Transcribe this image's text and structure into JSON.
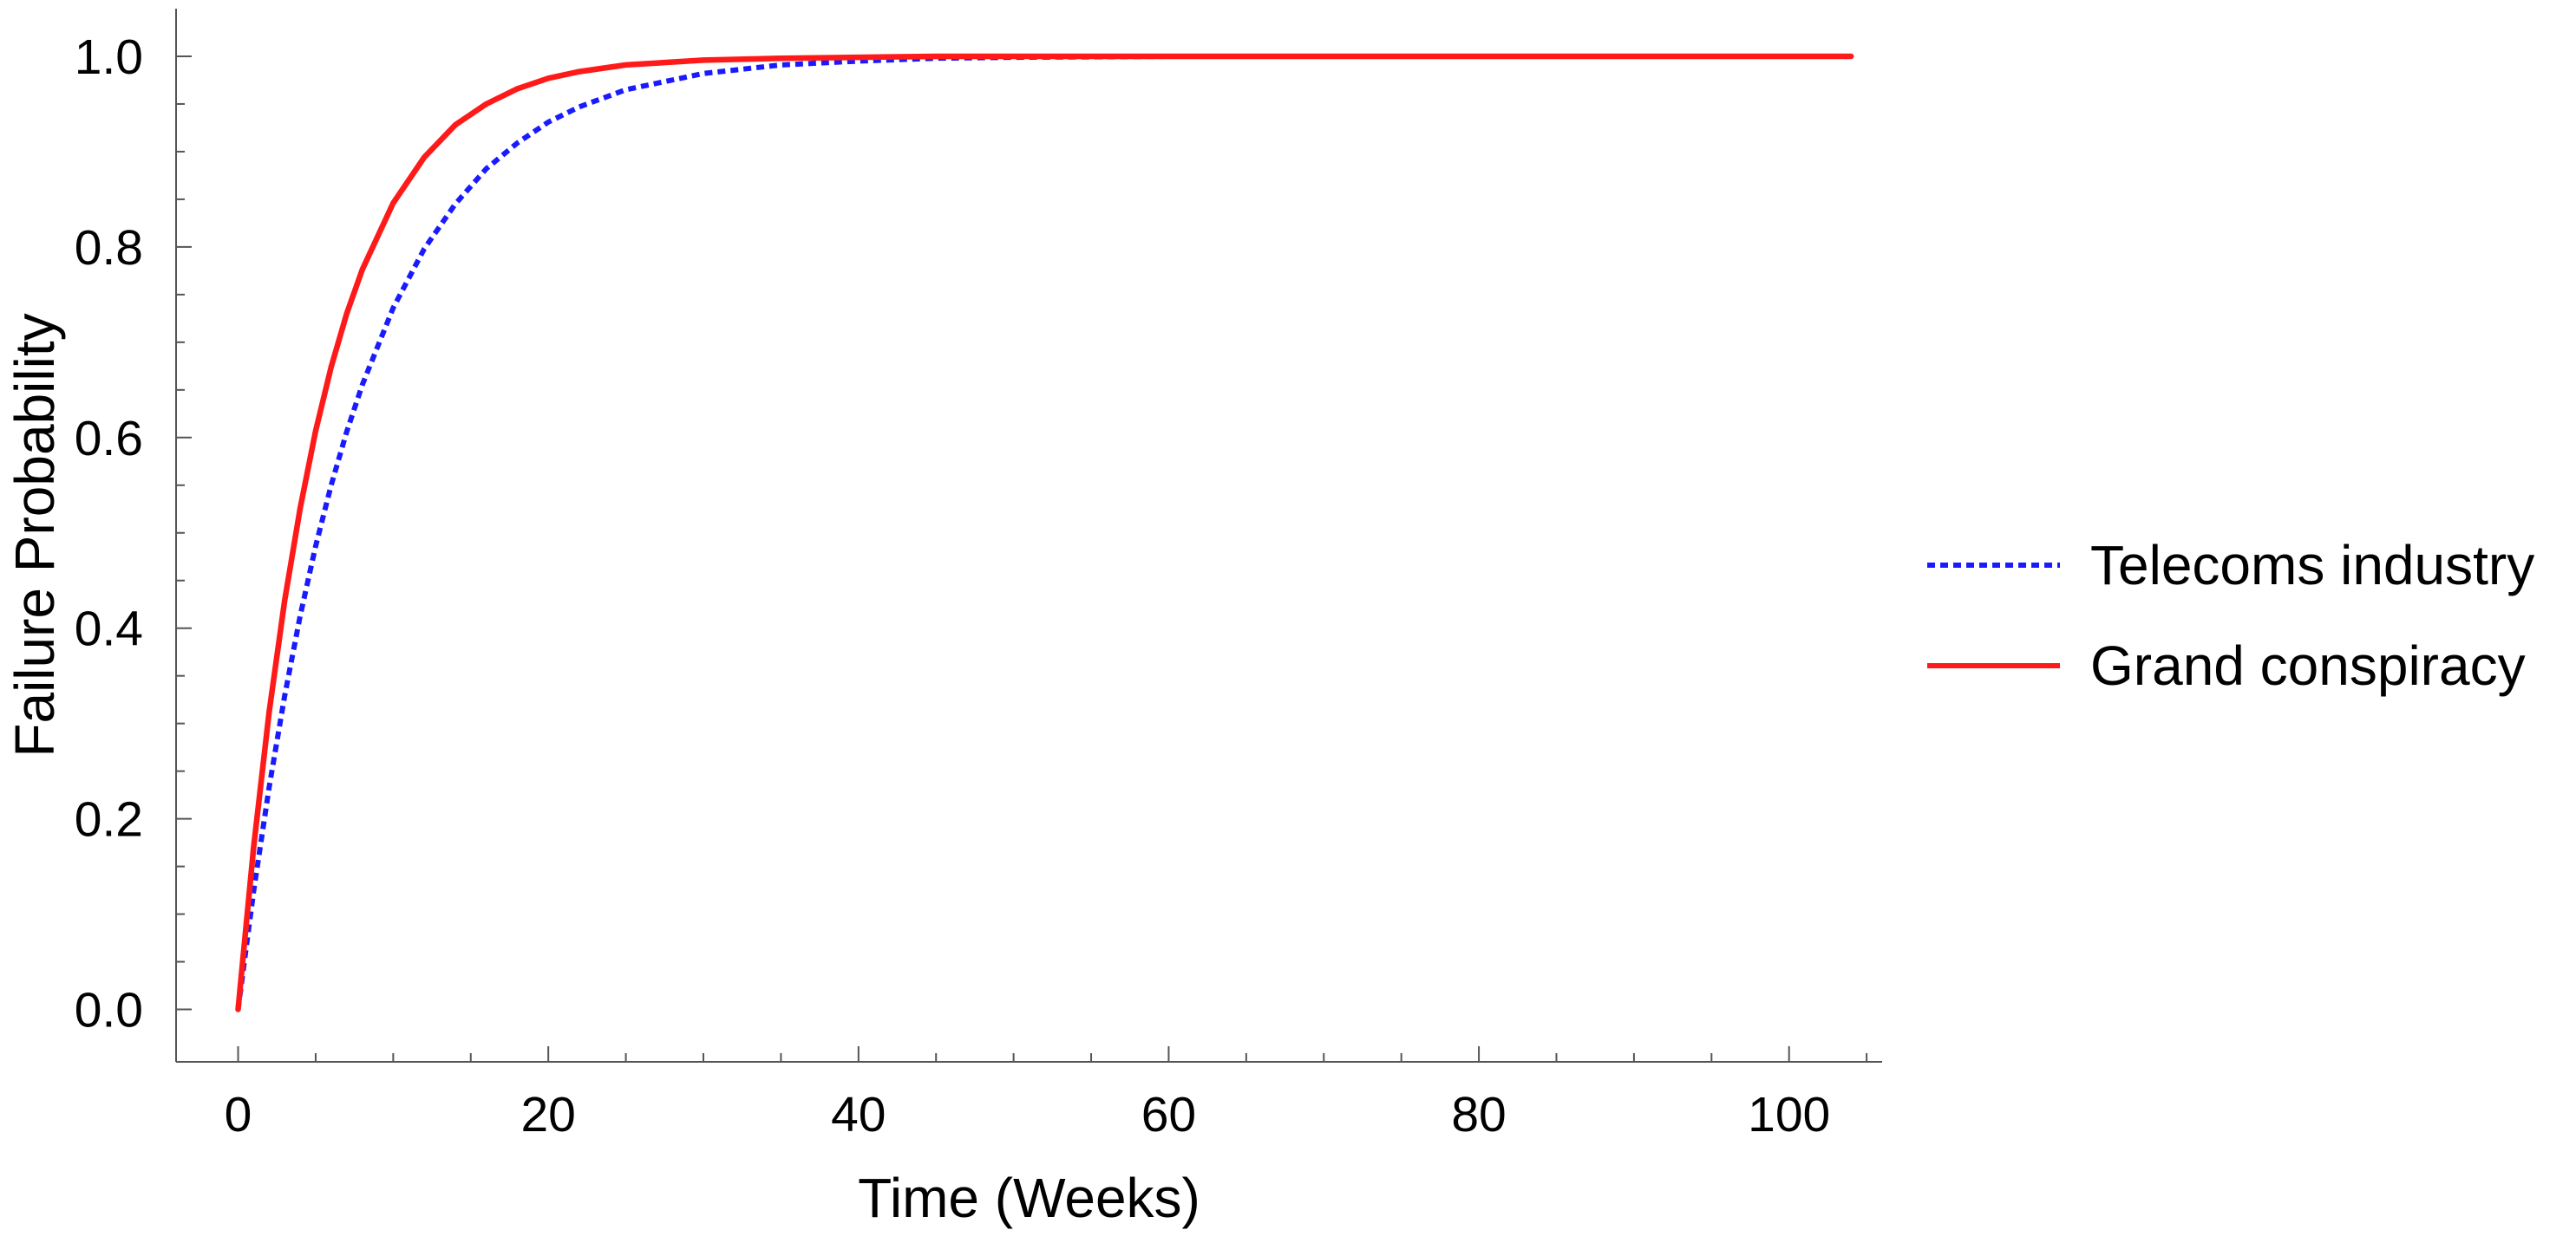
{
  "chart_data": {
    "type": "line",
    "title": "",
    "xlabel": "Time (Weeks)",
    "ylabel": "Failure Probability",
    "xlim": [
      -4,
      106
    ],
    "ylim": [
      -0.055,
      1.05
    ],
    "xticks": [
      0,
      20,
      40,
      60,
      80,
      100
    ],
    "xtick_labels": [
      "0",
      "20",
      "40",
      "60",
      "80",
      "100"
    ],
    "yticks": [
      0.0,
      0.2,
      0.4,
      0.6,
      0.8,
      1.0
    ],
    "ytick_labels": [
      "0.0",
      "0.2",
      "0.4",
      "0.6",
      "0.8",
      "1.0"
    ],
    "grid": false,
    "legend_position": "right",
    "series": [
      {
        "name": "Telecoms industry",
        "color": "#1a1aff",
        "style": "dotted",
        "x": [
          0,
          1,
          2,
          3,
          4,
          5,
          6,
          7,
          8,
          10,
          12,
          14,
          16,
          18,
          20,
          22,
          25,
          30,
          35,
          40,
          45,
          50,
          60,
          70,
          80,
          90,
          100,
          104
        ],
        "y": [
          0.0,
          0.124,
          0.233,
          0.329,
          0.413,
          0.486,
          0.55,
          0.606,
          0.655,
          0.736,
          0.798,
          0.845,
          0.882,
          0.909,
          0.931,
          0.947,
          0.965,
          0.982,
          0.991,
          0.995,
          0.998,
          0.999,
          1.0,
          1.0,
          1.0,
          1.0,
          1.0,
          1.0
        ]
      },
      {
        "name": "Grand conspiracy",
        "color": "#ff1a1a",
        "style": "solid",
        "x": [
          0,
          1,
          2,
          3,
          4,
          5,
          6,
          7,
          8,
          10,
          12,
          14,
          16,
          18,
          20,
          22,
          25,
          30,
          35,
          40,
          45,
          50,
          60,
          70,
          80,
          90,
          100,
          104
        ],
        "y": [
          0.0,
          0.17,
          0.312,
          0.429,
          0.526,
          0.607,
          0.674,
          0.73,
          0.776,
          0.846,
          0.894,
          0.928,
          0.95,
          0.966,
          0.977,
          0.984,
          0.991,
          0.996,
          0.998,
          0.999,
          1.0,
          1.0,
          1.0,
          1.0,
          1.0,
          1.0,
          1.0,
          1.0
        ]
      }
    ]
  }
}
